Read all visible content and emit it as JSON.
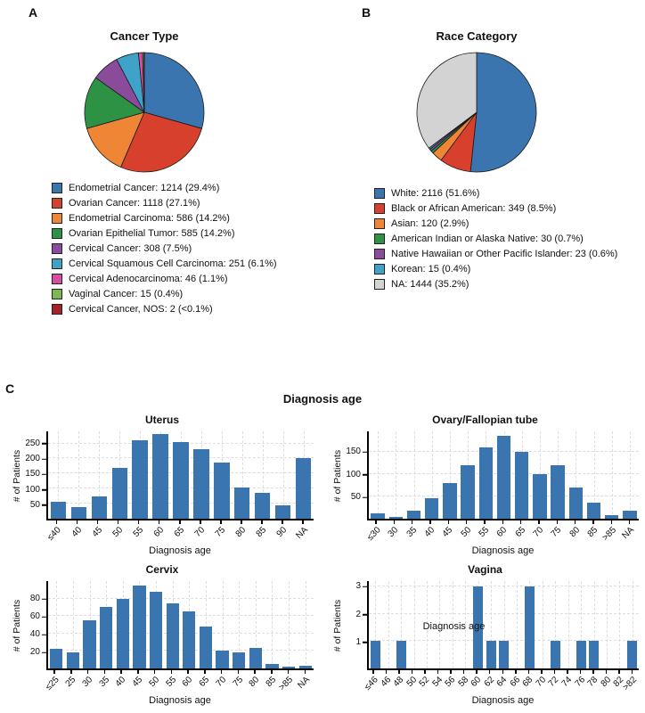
{
  "figure": {
    "panel_a_label": "A",
    "panel_b_label": "B",
    "panel_c_label": "C",
    "panel_c_title": "Diagnosis age"
  },
  "colors": {
    "bar": "#3B75AF",
    "axis": "#000000",
    "grid": "#dedede"
  },
  "chart_data": [
    {
      "type": "pie",
      "title": "Cancer Type",
      "legend_position": "bottom",
      "slices": [
        {
          "label": "Endometrial Cancer: 1214 (29.4%)",
          "name": "Endometrial Cancer",
          "count": 1214,
          "pct": 29.4,
          "color": "#3B75AF"
        },
        {
          "label": "Ovarian Cancer: 1118 (27.1%)",
          "name": "Ovarian Cancer",
          "count": 1118,
          "pct": 27.1,
          "color": "#D7402C"
        },
        {
          "label": "Endometrial Carcinoma: 586 (14.2%)",
          "name": "Endometrial Carcinoma",
          "count": 586,
          "pct": 14.2,
          "color": "#EF8636"
        },
        {
          "label": "Ovarian Epithelial Tumor: 585 (14.2%)",
          "name": "Ovarian Epithelial Tumor",
          "count": 585,
          "pct": 14.2,
          "color": "#2E9245"
        },
        {
          "label": "Cervical Cancer: 308 (7.5%)",
          "name": "Cervical Cancer",
          "count": 308,
          "pct": 7.5,
          "color": "#8B4B9B"
        },
        {
          "label": "Cervical Squamous Cell Carcinoma: 251 (6.1%)",
          "name": "Cervical Squamous Cell Carcinoma",
          "count": 251,
          "pct": 6.1,
          "color": "#3FA3C9"
        },
        {
          "label": "Cervical Adenocarcinoma: 46 (1.1%)",
          "name": "Cervical Adenocarcinoma",
          "count": 46,
          "pct": 1.1,
          "color": "#D84E9F"
        },
        {
          "label": "Vaginal Cancer: 15 (0.4%)",
          "name": "Vaginal Cancer",
          "count": 15,
          "pct": 0.4,
          "color": "#7CB854"
        },
        {
          "label": "Cervical Cancer, NOS: 2 (<0.1%)",
          "name": "Cervical Cancer, NOS",
          "count": 2,
          "pct": 0.08,
          "color": "#A3222A"
        }
      ]
    },
    {
      "type": "pie",
      "title": "Race Category",
      "legend_position": "bottom",
      "slices": [
        {
          "label": "White: 2116 (51.6%)",
          "name": "White",
          "count": 2116,
          "pct": 51.6,
          "color": "#3B75AF"
        },
        {
          "label": "Black or African American: 349 (8.5%)",
          "name": "Black or African American",
          "count": 349,
          "pct": 8.5,
          "color": "#D7402C"
        },
        {
          "label": "Asian: 120 (2.9%)",
          "name": "Asian",
          "count": 120,
          "pct": 2.9,
          "color": "#EF8636"
        },
        {
          "label": "American Indian or Alaska Native: 30 (0.7%)",
          "name": "American Indian or Alaska Native",
          "count": 30,
          "pct": 0.7,
          "color": "#2E9245"
        },
        {
          "label": "Native Hawaiian or Other Pacific Islander: 23 (0.6%)",
          "name": "Native Hawaiian or Other Pacific Islander",
          "count": 23,
          "pct": 0.6,
          "color": "#8B4B9B"
        },
        {
          "label": "Korean: 15 (0.4%)",
          "name": "Korean",
          "count": 15,
          "pct": 0.4,
          "color": "#3FA3C9"
        },
        {
          "label": "NA: 1444 (35.2%)",
          "name": "NA",
          "count": 1444,
          "pct": 35.2,
          "color": "#D3D3D3"
        }
      ]
    },
    {
      "type": "bar",
      "title": "Uterus",
      "xlabel": "Diagnosis age",
      "ylabel": "# of Patients",
      "categories": [
        "≤40",
        "40",
        "45",
        "50",
        "55",
        "60",
        "65",
        "70",
        "75",
        "80",
        "85",
        "90",
        "NA"
      ],
      "values": [
        55,
        38,
        75,
        170,
        260,
        280,
        255,
        230,
        185,
        105,
        85,
        45,
        200
      ],
      "yticks": [
        50,
        100,
        150,
        200,
        250
      ],
      "ylim": [
        0,
        290
      ],
      "grid": true
    },
    {
      "type": "bar",
      "title": "Ovary/Fallopian tube",
      "xlabel": "Diagnosis age",
      "ylabel": "# of Patients",
      "categories": [
        "≤30",
        "30",
        "35",
        "40",
        "45",
        "50",
        "55",
        "60",
        "65",
        "70",
        "75",
        "80",
        "85",
        ">85",
        "NA"
      ],
      "values": [
        12,
        5,
        18,
        45,
        80,
        120,
        160,
        185,
        150,
        100,
        120,
        70,
        35,
        8,
        18
      ],
      "yticks": [
        50,
        100,
        150
      ],
      "ylim": [
        0,
        195
      ],
      "grid": true
    },
    {
      "type": "bar",
      "title": "Cervix",
      "xlabel": "Diagnosis age",
      "ylabel": "# of Patients",
      "categories": [
        "≤25",
        "25",
        "30",
        "35",
        "40",
        "45",
        "50",
        "55",
        "60",
        "65",
        "70",
        "75",
        "80",
        "85",
        ">85",
        "NA"
      ],
      "values": [
        22,
        18,
        55,
        70,
        80,
        95,
        88,
        75,
        65,
        48,
        20,
        18,
        23,
        5,
        2,
        3
      ],
      "yticks": [
        20,
        40,
        60,
        80
      ],
      "ylim": [
        0,
        100
      ],
      "grid": true
    },
    {
      "type": "bar",
      "title": "Vagina",
      "xlabel": "Diagnosis age",
      "ylabel": "# of Patients",
      "annotation": "Diagnosis age",
      "categories": [
        "≤46",
        "46",
        "48",
        "50",
        "52",
        "54",
        "56",
        "58",
        "60",
        "62",
        "64",
        "66",
        "68",
        "70",
        "72",
        "74",
        "76",
        "78",
        "80",
        "82",
        ">82"
      ],
      "values": [
        1,
        0,
        1,
        0,
        0,
        0,
        0,
        0,
        3,
        1,
        1,
        0,
        3,
        0,
        1,
        0,
        1,
        1,
        0,
        0,
        1
      ],
      "yticks": [
        1,
        2,
        3
      ],
      "ylim": [
        0,
        3.2
      ],
      "grid": true
    }
  ]
}
